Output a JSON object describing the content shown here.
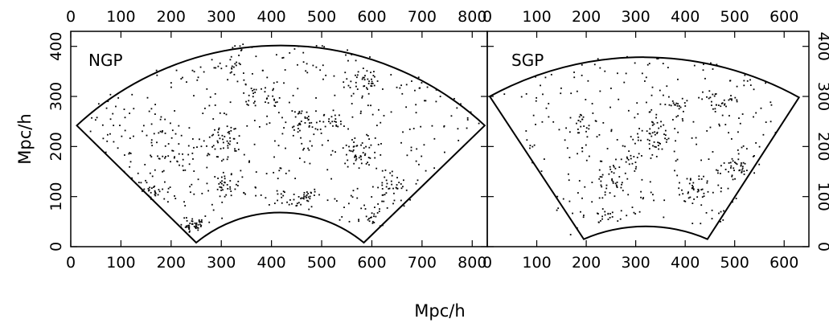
{
  "figure": {
    "shared_xlabel": "Mpc/h",
    "shared_ylabel": "Mpc/h"
  },
  "chart_data": [
    {
      "type": "scatter",
      "panel_label": "NGP",
      "xlabel": "",
      "ylabel": "Mpc/h",
      "xlim": [
        0,
        830
      ],
      "ylim": [
        0,
        430
      ],
      "xticks": [
        0,
        100,
        200,
        300,
        400,
        500,
        600,
        700,
        800
      ],
      "yticks": [
        0,
        100,
        200,
        300,
        400
      ],
      "tick_labels_top": true,
      "tick_labels_bottom": true,
      "grid": false,
      "survey_boundary": {
        "center": [
          415,
          -185
        ],
        "inner_radius": 262,
        "outer_radius": 597,
        "corners": [
          [
            12,
            242
          ],
          [
            825,
            242
          ],
          [
            250,
            8
          ],
          [
            584,
            8
          ]
        ]
      },
      "points_description_seed": 11,
      "clusters": [
        {
          "x": 245,
          "y": 45,
          "n": 40,
          "spread": 10
        },
        {
          "x": 160,
          "y": 110,
          "n": 30,
          "spread": 14
        },
        {
          "x": 310,
          "y": 120,
          "n": 35,
          "spread": 16
        },
        {
          "x": 430,
          "y": 90,
          "n": 30,
          "spread": 18
        },
        {
          "x": 470,
          "y": 100,
          "n": 20,
          "spread": 12
        },
        {
          "x": 575,
          "y": 190,
          "n": 40,
          "spread": 18
        },
        {
          "x": 640,
          "y": 120,
          "n": 30,
          "spread": 15
        },
        {
          "x": 300,
          "y": 210,
          "n": 45,
          "spread": 22
        },
        {
          "x": 200,
          "y": 190,
          "n": 25,
          "spread": 20
        },
        {
          "x": 380,
          "y": 300,
          "n": 35,
          "spread": 20
        },
        {
          "x": 470,
          "y": 250,
          "n": 30,
          "spread": 20
        },
        {
          "x": 580,
          "y": 330,
          "n": 25,
          "spread": 18
        },
        {
          "x": 320,
          "y": 360,
          "n": 20,
          "spread": 15
        },
        {
          "x": 520,
          "y": 250,
          "n": 20,
          "spread": 15
        },
        {
          "x": 600,
          "y": 60,
          "n": 15,
          "spread": 10
        }
      ],
      "n_field_points": 420
    },
    {
      "type": "scatter",
      "panel_label": "SGP",
      "xlabel": "",
      "ylabel": "",
      "xlim": [
        0,
        650
      ],
      "ylim": [
        0,
        430
      ],
      "xticks": [
        0,
        100,
        200,
        300,
        400,
        500,
        600
      ],
      "yticks": [
        0,
        100,
        200,
        300,
        400
      ],
      "tick_labels_top": true,
      "tick_labels_bottom": true,
      "tick_labels_right": true,
      "grid": false,
      "survey_boundary": {
        "center": [
          318,
          -270
        ],
        "inner_radius": 320,
        "outer_radius": 655,
        "corners": [
          [
            5,
            300
          ],
          [
            630,
            298
          ],
          [
            195,
            15
          ],
          [
            445,
            15
          ]
        ]
      },
      "points_description_seed": 23,
      "clusters": [
        {
          "x": 200,
          "y": 240,
          "n": 25,
          "spread": 15
        },
        {
          "x": 250,
          "y": 130,
          "n": 30,
          "spread": 16
        },
        {
          "x": 330,
          "y": 220,
          "n": 35,
          "spread": 20
        },
        {
          "x": 420,
          "y": 110,
          "n": 30,
          "spread": 15
        },
        {
          "x": 500,
          "y": 160,
          "n": 30,
          "spread": 18
        },
        {
          "x": 480,
          "y": 280,
          "n": 25,
          "spread": 18
        },
        {
          "x": 230,
          "y": 60,
          "n": 20,
          "spread": 14
        },
        {
          "x": 380,
          "y": 280,
          "n": 20,
          "spread": 16
        },
        {
          "x": 290,
          "y": 170,
          "n": 20,
          "spread": 18
        }
      ],
      "n_field_points": 280
    }
  ]
}
